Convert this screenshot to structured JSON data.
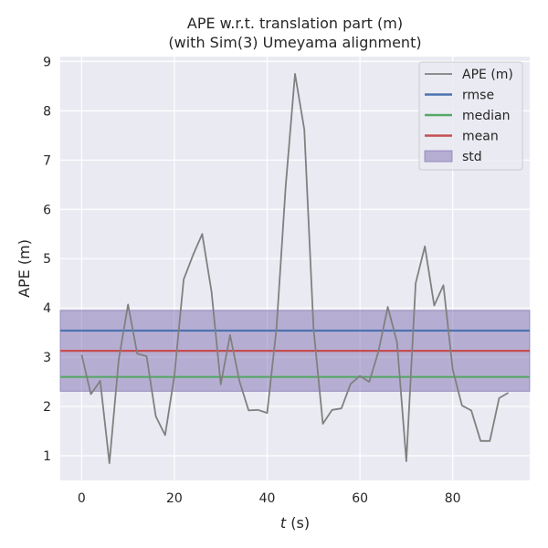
{
  "chart_data": {
    "type": "line",
    "title_line1": "APE w.r.t. translation part (m)",
    "title_line2": "(with Sim(3) Umeyama alignment)",
    "xlabel_var": "t",
    "xlabel_unit": " (s)",
    "ylabel": "APE (m)",
    "xlim": [
      -4.6,
      96.6
    ],
    "ylim": [
      0.5,
      9.1
    ],
    "xticks": [
      0,
      20,
      40,
      60,
      80
    ],
    "yticks": [
      1,
      2,
      3,
      4,
      5,
      6,
      7,
      8,
      9
    ],
    "grid": true,
    "legend_position": "top-right",
    "series": [
      {
        "name": "APE (m)",
        "color": "#808080",
        "x": [
          0,
          2,
          4,
          6,
          8,
          10,
          12,
          14,
          16,
          18,
          20,
          22,
          24,
          26,
          28,
          30,
          32,
          34,
          36,
          38,
          40,
          42,
          44,
          46,
          48,
          50,
          52,
          54,
          56,
          58,
          60,
          62,
          64,
          66,
          68,
          70,
          72,
          74,
          76,
          78,
          80,
          82,
          84,
          86,
          88,
          90,
          92
        ],
        "y": [
          3.05,
          2.25,
          2.52,
          0.85,
          2.95,
          4.07,
          3.07,
          3.02,
          1.8,
          1.42,
          2.62,
          4.58,
          5.07,
          5.5,
          4.33,
          2.45,
          3.45,
          2.52,
          1.92,
          1.93,
          1.87,
          3.58,
          6.47,
          8.75,
          7.62,
          3.58,
          1.65,
          1.93,
          1.96,
          2.46,
          2.62,
          2.5,
          3.12,
          4.02,
          3.3,
          0.89,
          4.5,
          5.25,
          4.05,
          4.46,
          2.75,
          2.02,
          1.92,
          1.3,
          1.3,
          2.17,
          2.28
        ]
      }
    ],
    "stats": {
      "rmse": {
        "name": "rmse",
        "value": 3.54,
        "color": "#4c72b0"
      },
      "median": {
        "name": "median",
        "value": 2.6,
        "color": "#55a868"
      },
      "mean": {
        "name": "mean",
        "value": 3.13,
        "color": "#c44e52"
      },
      "std": {
        "name": "std",
        "lower": 2.31,
        "upper": 3.95,
        "color": "#8172b2"
      }
    },
    "colors": {
      "background": "#eaeaf2",
      "grid": "#ffffff"
    }
  }
}
